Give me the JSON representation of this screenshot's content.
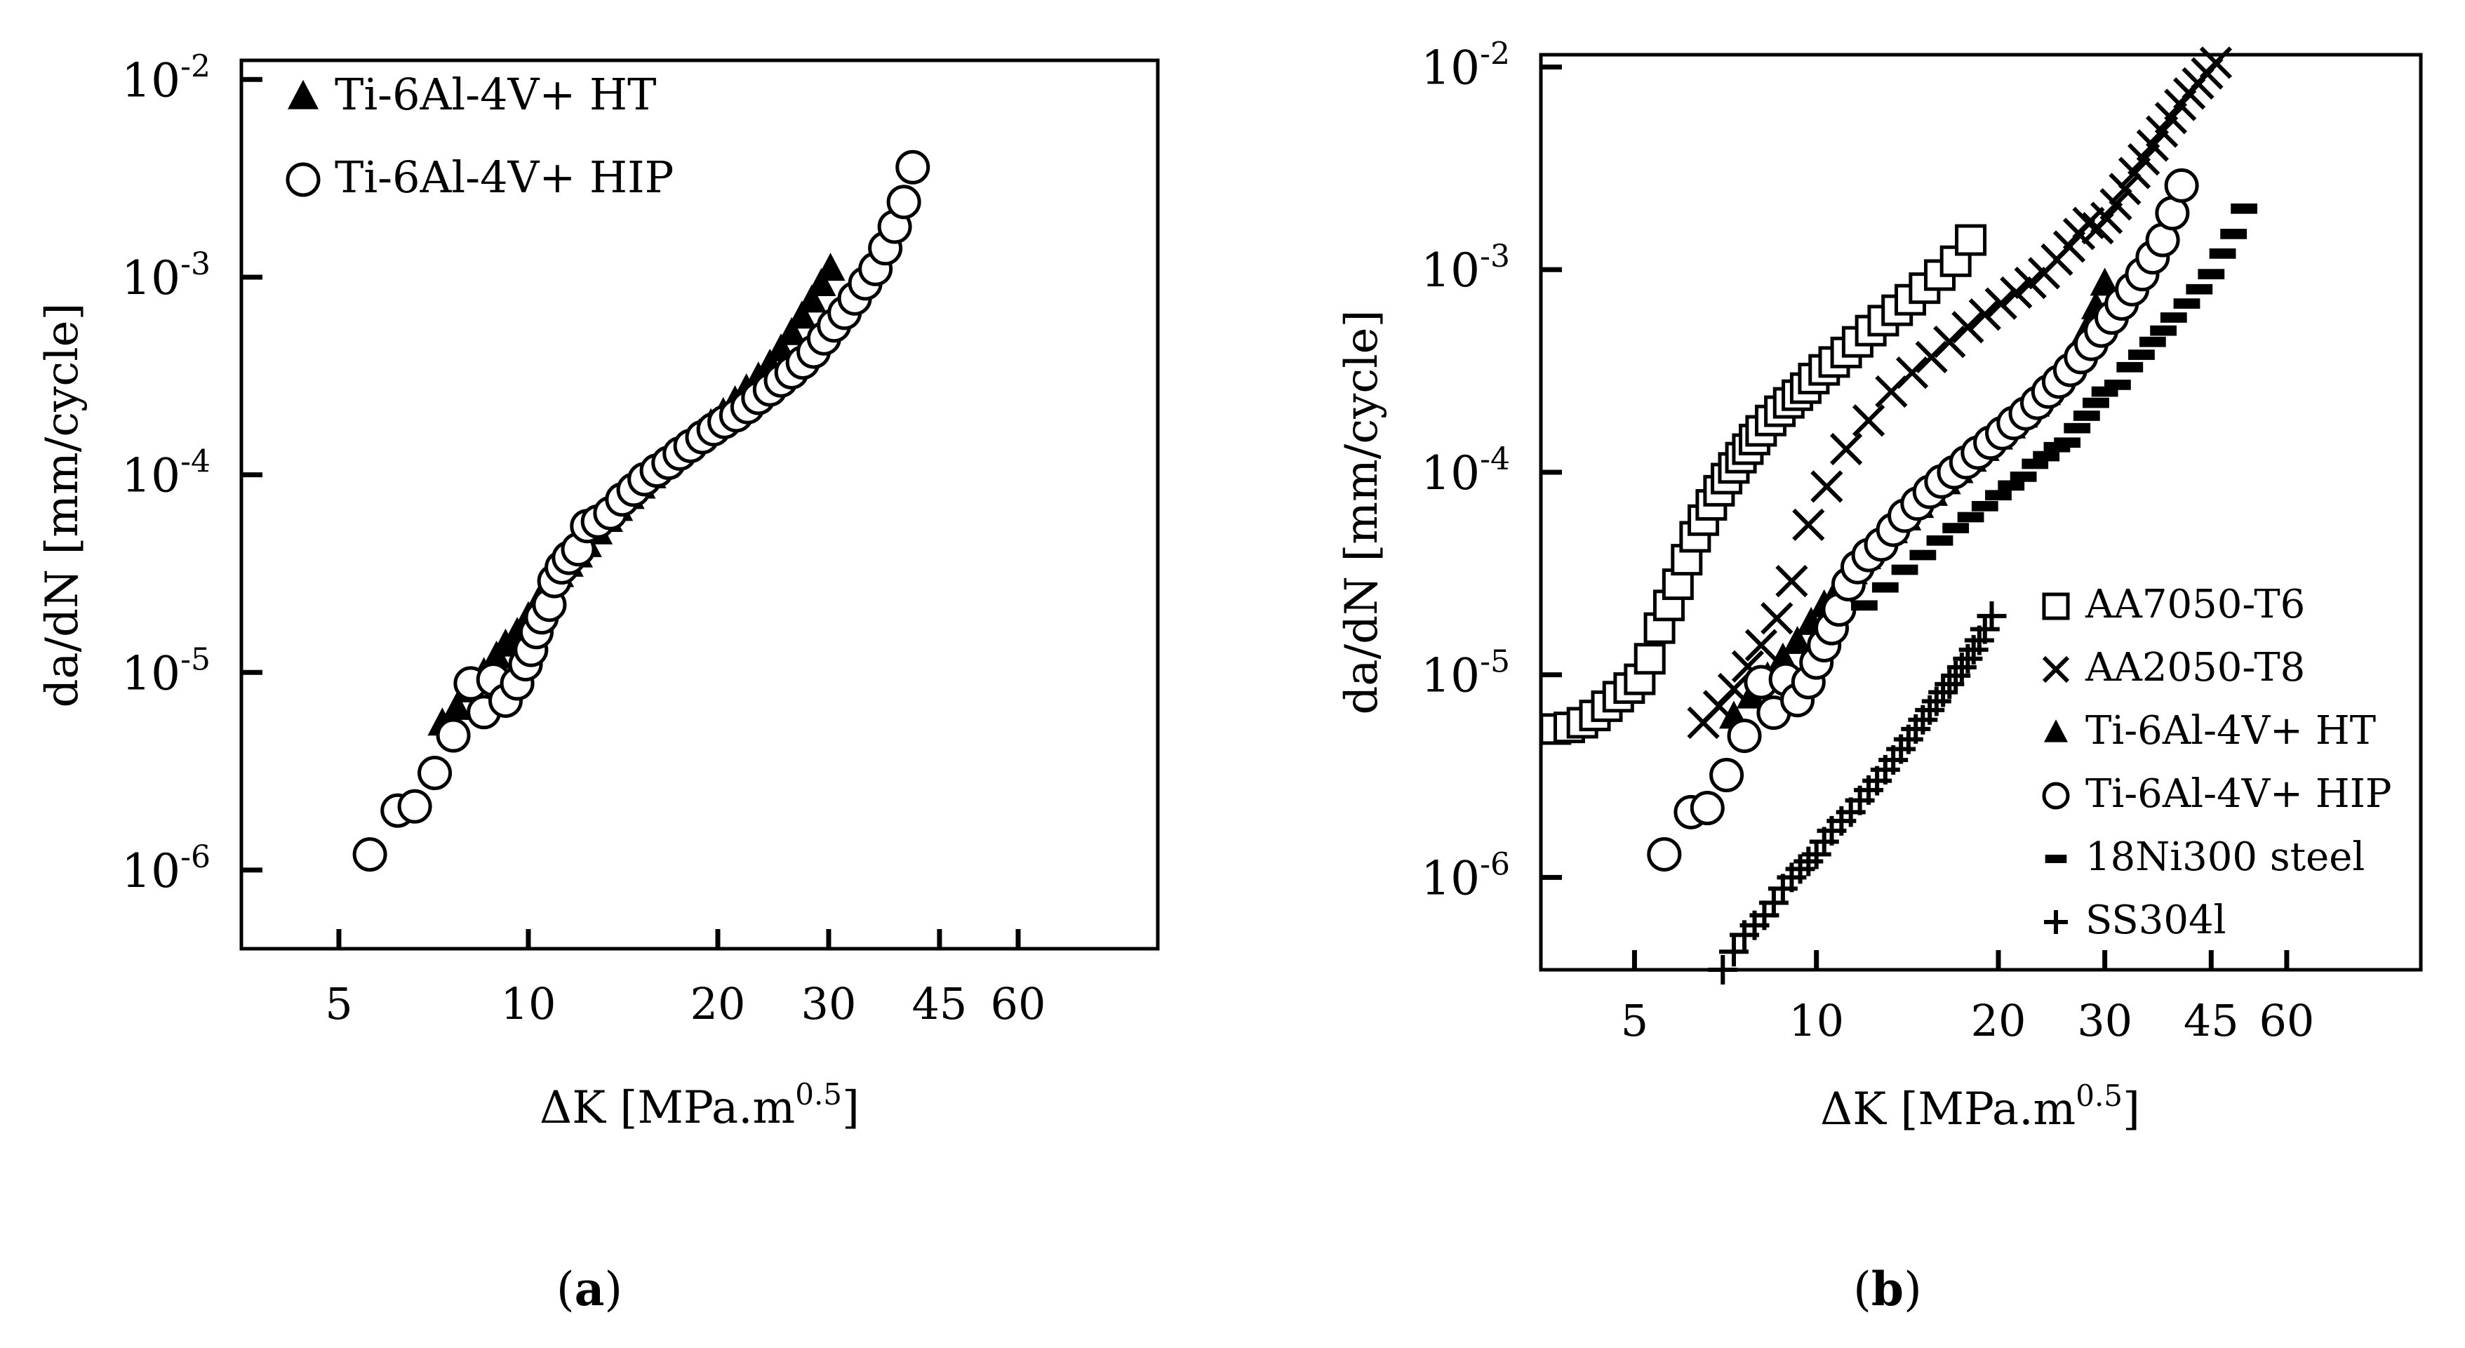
{
  "chart_data": [
    {
      "type": "scatter",
      "panel_label": "(a)",
      "xlabel_main": "ΔK [MPa.m",
      "xlabel_sup": "0.5",
      "xlabel_end": "]",
      "ylabel": "da/dN [mm/cycle]",
      "x_scale": "log",
      "y_scale": "log",
      "xlim": [
        3.5,
        100
      ],
      "ylim": [
        4e-07,
        0.0125
      ],
      "x_ticks": [
        5,
        10,
        20,
        30,
        45,
        60
      ],
      "x_tick_labels": [
        "5",
        "10",
        "20",
        "30",
        "45",
        "60"
      ],
      "y_ticks": [
        1e-06,
        1e-05,
        0.0001,
        0.001,
        0.01
      ],
      "y_tick_base": [
        "10",
        "10",
        "10",
        "10",
        "10"
      ],
      "y_tick_exp": [
        "-6",
        "-5",
        "-4",
        "-3",
        "-2"
      ],
      "legend_position": "top-left",
      "series": [
        {
          "name": "Ti-6Al-4V+ HT",
          "marker": "triangle",
          "x": [
            7.3,
            7.7,
            8.1,
            8.5,
            8.9,
            9.2,
            9.6,
            10,
            10.4,
            10.8,
            11.2,
            11.6,
            12,
            12.4,
            12.9,
            13.4,
            13.9,
            14.5,
            15.1,
            15.7,
            16.4,
            17.1,
            17.9,
            18.7,
            19.5,
            20.4,
            21.3,
            22.2,
            23.2,
            24.2,
            25.2,
            26.2,
            27.2,
            28.2,
            29.2,
            30.2
          ],
          "y": [
            5.5e-06,
            6.6e-06,
            8.1e-06,
            9.9e-06,
            1.2e-05,
            1.38e-05,
            1.58e-05,
            1.9e-05,
            2.3e-05,
            2.7e-05,
            3.1e-05,
            3.5e-05,
            3.9e-05,
            4.4e-05,
            5.1e-05,
            5.9e-05,
            6.7e-05,
            7.7e-05,
            8.7e-05,
            9.8e-05,
            0.000111,
            0.000125,
            0.000142,
            0.00016,
            0.00018,
            0.000205,
            0.000235,
            0.00027,
            0.00031,
            0.00036,
            0.00043,
            0.00052,
            0.00063,
            0.00076,
            0.00092,
            0.0011
          ]
        },
        {
          "name": "Ti-6Al-4V+ HIP",
          "marker": "circle",
          "x": [
            5.6,
            6.2,
            6.6,
            7.1,
            7.6,
            8.1,
            8.5,
            8.8,
            9.2,
            9.6,
            9.9,
            10.1,
            10.3,
            10.5,
            10.8,
            11,
            11.3,
            11.6,
            12,
            12.4,
            12.9,
            13.5,
            14.1,
            14.7,
            15.3,
            16,
            16.7,
            17.4,
            18.1,
            18.9,
            19.7,
            20.5,
            21.4,
            22.3,
            23.2,
            24.2,
            25.2,
            26.2,
            27.3,
            28.4,
            29.5,
            30.6,
            31.8,
            33,
            34.3,
            35.6,
            36.9,
            38.2,
            39.5,
            40.8
          ],
          "y": [
            1.2e-06,
            2e-06,
            2.1e-06,
            3.1e-06,
            4.8e-06,
            8.8e-06,
            6.3e-06,
            9.2e-06,
            7.2e-06,
            8.8e-06,
            1.1e-05,
            1.3e-05,
            1.6e-05,
            1.9e-05,
            2.2e-05,
            2.9e-05,
            3.4e-05,
            3.8e-05,
            4.2e-05,
            5.5e-05,
            5.8e-05,
            6.4e-05,
            7.5e-05,
            8.4e-05,
            9.5e-05,
            0.000105,
            0.000115,
            0.000128,
            0.00014,
            0.000155,
            0.00017,
            0.000185,
            0.0002,
            0.00022,
            0.000245,
            0.00027,
            0.0003,
            0.00033,
            0.00037,
            0.00042,
            0.00049,
            0.00057,
            0.00066,
            0.00078,
            0.00093,
            0.0011,
            0.0014,
            0.0018,
            0.0024,
            0.0036
          ]
        }
      ]
    },
    {
      "type": "scatter",
      "panel_label": "(b)",
      "xlabel_main": "ΔK [MPa.m",
      "xlabel_sup": "0.5",
      "xlabel_end": "]",
      "ylabel": "da/dN [mm/cycle]",
      "x_scale": "log",
      "y_scale": "log",
      "xlim": [
        3.5,
        100
      ],
      "ylim": [
        3.5e-07,
        0.0115
      ],
      "x_ticks": [
        5,
        10,
        20,
        30,
        45,
        60
      ],
      "x_tick_labels": [
        "5",
        "10",
        "20",
        "30",
        "45",
        "60"
      ],
      "y_ticks": [
        1e-06,
        1e-05,
        0.0001,
        0.001,
        0.01
      ],
      "y_tick_base": [
        "10",
        "10",
        "10",
        "10",
        "10"
      ],
      "y_tick_exp": [
        "-6",
        "-5",
        "-4",
        "-3",
        "-2"
      ],
      "legend_position": "bottom-right",
      "series": [
        {
          "name": "AA7050-T6",
          "marker": "square",
          "x": [
            3.7,
            3.9,
            4.1,
            4.3,
            4.5,
            4.7,
            4.9,
            5.1,
            5.3,
            5.5,
            5.7,
            5.9,
            6.1,
            6.3,
            6.5,
            6.7,
            6.9,
            7.1,
            7.3,
            7.5,
            7.7,
            7.9,
            8.1,
            8.4,
            8.7,
            9,
            9.3,
            9.6,
            9.9,
            10.3,
            10.7,
            11.2,
            11.7,
            12.3,
            12.9,
            13.6,
            14.3,
            15.1,
            16,
            17,
            18
          ],
          "y": [
            5.4e-06,
            5.5e-06,
            5.8e-06,
            6.3e-06,
            7e-06,
            7.8e-06,
            8.6e-06,
            9.5e-06,
            1.2e-05,
            1.7e-05,
            2.2e-05,
            2.8e-05,
            3.7e-05,
            4.8e-05,
            5.8e-05,
            6.9e-05,
            8.1e-05,
            9.3e-05,
            0.000105,
            0.000118,
            0.00013,
            0.000145,
            0.00016,
            0.00018,
            0.0002,
            0.00022,
            0.00024,
            0.00026,
            0.00029,
            0.00032,
            0.00035,
            0.00039,
            0.00044,
            0.0005,
            0.00056,
            0.00063,
            0.00071,
            0.00081,
            0.00094,
            0.0011,
            0.0014
          ]
        },
        {
          "name": "AA2050-T8",
          "marker": "cross",
          "x": [
            6.5,
            6.9,
            7.3,
            7.7,
            8.1,
            8.6,
            9.1,
            9.7,
            10.4,
            11.2,
            12.2,
            13.3,
            14.4,
            15.5,
            16.6,
            17.8,
            19,
            20.2,
            21.4,
            22.6,
            23.8,
            25,
            26.2,
            27.2,
            28.2,
            29.2,
            30.2,
            31.3,
            32.4,
            33.6,
            34.8,
            36,
            37.3,
            38.6,
            40,
            41.4,
            42.8,
            44.3,
            45.8
          ],
          "y": [
            5.8e-06,
            7e-06,
            8.5e-06,
            1.1e-05,
            1.4e-05,
            1.9e-05,
            2.9e-05,
            5.5e-05,
            8.5e-05,
            0.00013,
            0.00018,
            0.00025,
            0.00031,
            0.00037,
            0.00044,
            0.00052,
            0.0006,
            0.00068,
            0.00077,
            0.00086,
            0.00096,
            0.00112,
            0.0013,
            0.0015,
            0.0017,
            0.0016,
            0.0018,
            0.0021,
            0.0025,
            0.003,
            0.0035,
            0.0041,
            0.0048,
            0.0056,
            0.0065,
            0.0074,
            0.0083,
            0.0093,
            0.0105
          ]
        },
        {
          "name": "Ti-6Al-4V+ HT",
          "marker": "triangle",
          "x": [
            7.3,
            7.8,
            8.3,
            8.8,
            9.3,
            9.8,
            10.3,
            10.9,
            11.5,
            12.1,
            12.7,
            13.4,
            14.1,
            14.8,
            15.6,
            16.4,
            17.2,
            18.1,
            19,
            20,
            21,
            22,
            23,
            24,
            25,
            26,
            27,
            28,
            29,
            30
          ],
          "y": [
            6.2e-06,
            7.8e-06,
            9.7e-06,
            1.2e-05,
            1.45e-05,
            1.8e-05,
            2.2e-05,
            2.7e-05,
            3.2e-05,
            3.8e-05,
            4.4e-05,
            5.1e-05,
            5.9e-05,
            6.8e-05,
            7.8e-05,
            8.9e-05,
            0.000101,
            0.000115,
            0.00013,
            0.000148,
            0.000168,
            0.00019,
            0.000215,
            0.000245,
            0.00028,
            0.00033,
            0.0004,
            0.0005,
            0.00065,
            0.00085
          ]
        },
        {
          "name": "Ti-6Al-4V+ HIP",
          "marker": "circle",
          "x": [
            5.6,
            6.2,
            6.6,
            7.1,
            7.6,
            8.1,
            8.5,
            8.9,
            9.3,
            9.7,
            10,
            10.3,
            10.6,
            10.9,
            11.3,
            11.7,
            12.2,
            12.8,
            13.4,
            14,
            14.7,
            15.4,
            16.1,
            16.9,
            17.7,
            18.5,
            19.4,
            20.3,
            21.2,
            22.2,
            23.2,
            24.2,
            25.2,
            26.3,
            27.4,
            28.5,
            29.6,
            30.8,
            32,
            33.3,
            34.6,
            36,
            37.4,
            38.8,
            40.2
          ],
          "y": [
            1.3e-06,
            2.1e-06,
            2.2e-06,
            3.2e-06,
            5e-06,
            9.2e-06,
            6.5e-06,
            9.5e-06,
            7.5e-06,
            9.2e-06,
            1.15e-05,
            1.4e-05,
            1.7e-05,
            2.1e-05,
            2.8e-05,
            3.4e-05,
            3.9e-05,
            4.4e-05,
            5.2e-05,
            6.1e-05,
            7e-05,
            8e-05,
            9e-05,
            0.0001,
            0.000112,
            0.000125,
            0.00014,
            0.000156,
            0.000175,
            0.000195,
            0.00022,
            0.00025,
            0.00028,
            0.00032,
            0.00037,
            0.00043,
            0.0005,
            0.00058,
            0.00068,
            0.0008,
            0.00095,
            0.00115,
            0.0014,
            0.0019,
            0.0026
          ]
        },
        {
          "name": "18Ni300 steel",
          "marker": "dash",
          "x": [
            12,
            13,
            14,
            15,
            16,
            17,
            18,
            19,
            20,
            21,
            22,
            23,
            24,
            25,
            26,
            27,
            28,
            29,
            30,
            31.5,
            33,
            34.5,
            36,
            37.5,
            39,
            41,
            43,
            45,
            47,
            49,
            51
          ],
          "y": [
            2.2e-05,
            2.7e-05,
            3.3e-05,
            3.9e-05,
            4.6e-05,
            5.3e-05,
            6e-05,
            6.8e-05,
            7.7e-05,
            8.6e-05,
            9.5e-05,
            0.00011,
            0.00012,
            0.000133,
            0.00014,
            0.000165,
            0.00019,
            0.00022,
            0.00025,
            0.00027,
            0.00033,
            0.00038,
            0.00044,
            0.0005,
            0.00058,
            0.00068,
            0.0008,
            0.00095,
            0.0012,
            0.0015,
            0.002
          ]
        },
        {
          "name": "SS304l",
          "marker": "plus",
          "x": [
            7,
            7.3,
            7.6,
            7.9,
            8.2,
            8.5,
            8.8,
            9.1,
            9.4,
            9.7,
            10,
            10.3,
            10.6,
            11,
            11.4,
            11.8,
            12.2,
            12.6,
            13,
            13.4,
            13.8,
            14.2,
            14.6,
            15,
            15.4,
            15.8,
            16.2,
            16.6,
            17,
            17.4,
            17.8,
            18.2,
            18.6,
            19,
            19.5
          ],
          "y": [
            3.5e-07,
            4.3e-07,
            5.2e-07,
            5.8e-07,
            6.5e-07,
            7.5e-07,
            8.8e-07,
            1e-06,
            1.1e-06,
            1.2e-06,
            1.3e-06,
            1.5e-06,
            1.7e-06,
            1.9e-06,
            2.1e-06,
            2.4e-06,
            2.7e-06,
            3e-06,
            3.4e-06,
            3.8e-06,
            4.3e-06,
            4.8e-06,
            5.4e-06,
            6e-06,
            6.7e-06,
            7.4e-06,
            8.2e-06,
            9e-06,
            9.9e-06,
            1.09e-05,
            1.2e-05,
            1.33e-05,
            1.48e-05,
            1.68e-05,
            1.95e-05
          ]
        }
      ]
    }
  ]
}
